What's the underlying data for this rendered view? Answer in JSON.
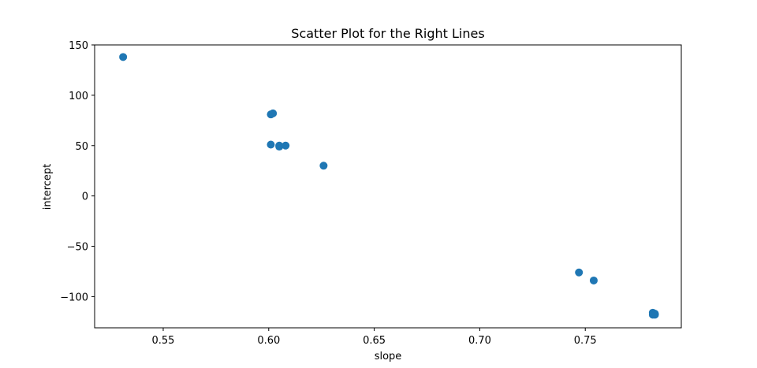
{
  "chart_data": {
    "type": "scatter",
    "title": "Scatter Plot for the Right Lines",
    "xlabel": "slope",
    "ylabel": "intercept",
    "xlim": [
      0.5175,
      0.7955
    ],
    "ylim": [
      -131,
      150
    ],
    "xticks": [
      0.55,
      0.6,
      0.65,
      0.7,
      0.75
    ],
    "xtick_labels": [
      "0.55",
      "0.60",
      "0.65",
      "0.70",
      "0.75"
    ],
    "yticks": [
      150,
      100,
      50,
      0,
      -50,
      -100
    ],
    "ytick_labels": [
      "150",
      "100",
      "50",
      "0",
      "−50",
      "−100"
    ],
    "grid": false,
    "marker_color": "#1f77b4",
    "series": [
      {
        "points": [
          {
            "x": 0.531,
            "y": 138
          },
          {
            "x": 0.601,
            "y": 81
          },
          {
            "x": 0.602,
            "y": 82
          },
          {
            "x": 0.601,
            "y": 51
          },
          {
            "x": 0.605,
            "y": 50
          },
          {
            "x": 0.605,
            "y": 49
          },
          {
            "x": 0.608,
            "y": 50
          },
          {
            "x": 0.626,
            "y": 30
          },
          {
            "x": 0.747,
            "y": -76
          },
          {
            "x": 0.754,
            "y": -84
          },
          {
            "x": 0.782,
            "y": -116
          },
          {
            "x": 0.782,
            "y": -118
          },
          {
            "x": 0.783,
            "y": -117
          },
          {
            "x": 0.783,
            "y": -118
          }
        ]
      }
    ]
  }
}
